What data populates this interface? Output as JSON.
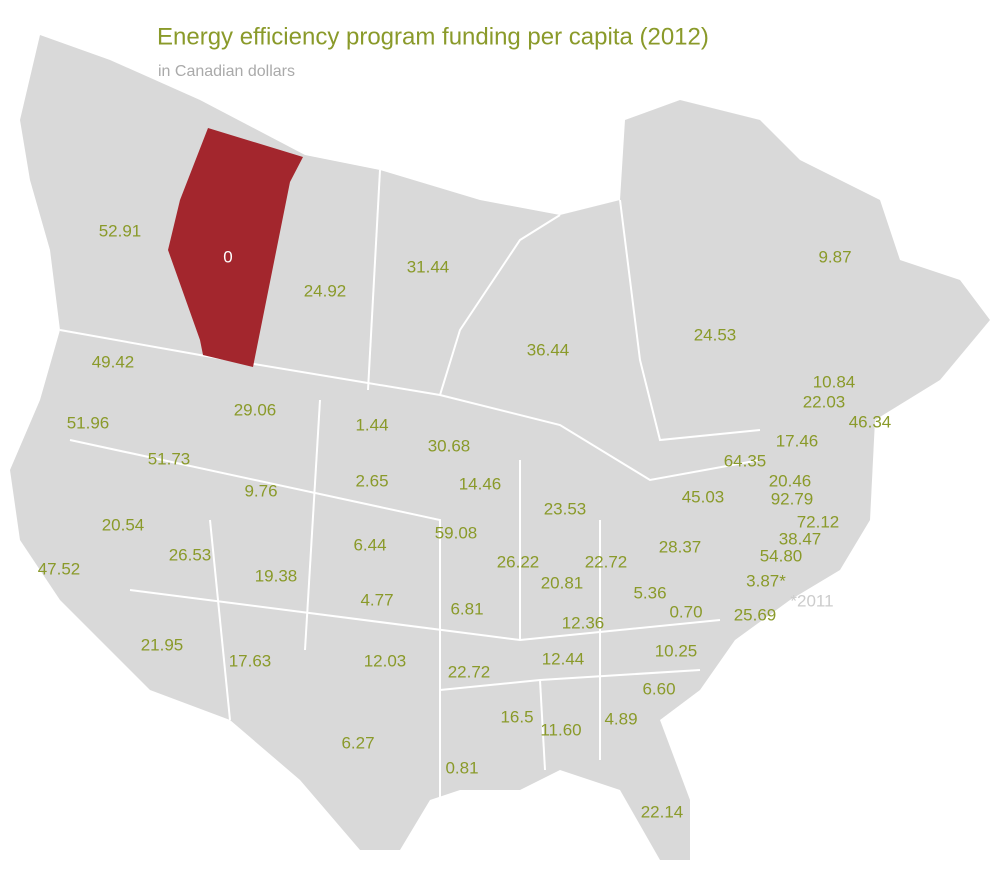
{
  "title": "Energy efficiency program funding per capita (2012)",
  "subtitle": "in Canadian dollars",
  "footnote": "*2011",
  "colors": {
    "land": "#d9d9d9",
    "border": "#ffffff",
    "highlight": "#a3262d",
    "text": "#8a9a2a",
    "highlight_text": "#ffffff",
    "subtitle": "#aaaaaa",
    "footnote": "#cccccc"
  },
  "regions": [
    {
      "value": 52.91
    },
    {
      "value": 0,
      "highlight": true
    },
    {
      "value": 24.92
    },
    {
      "value": 31.44
    },
    {
      "value": 36.44
    },
    {
      "value": 24.53
    },
    {
      "value": 9.87
    },
    {
      "value": 49.42
    },
    {
      "value": 29.06
    },
    {
      "value": 1.44
    },
    {
      "value": 30.68
    },
    {
      "value": 51.96
    },
    {
      "value": 51.73
    },
    {
      "value": 2.65
    },
    {
      "value": 14.46
    },
    {
      "value": 23.53
    },
    {
      "value": 64.35
    },
    {
      "value": 17.46
    },
    {
      "value": 22.03
    },
    {
      "value": 10.84
    },
    {
      "value": 46.34
    },
    {
      "value": 20.46
    },
    {
      "value": 92.79
    },
    {
      "value": 45.03
    },
    {
      "value": 72.12
    },
    {
      "value": 38.47
    },
    {
      "value": 9.76
    },
    {
      "value": 20.54
    },
    {
      "value": 6.44
    },
    {
      "value": 59.08
    },
    {
      "value": 26.22
    },
    {
      "value": 22.72
    },
    {
      "value": 28.37
    },
    {
      "value": 54.8,
      "label": "54.80"
    },
    {
      "value": 3.87,
      "label": "3.87*"
    },
    {
      "value": 26.53
    },
    {
      "value": 19.38
    },
    {
      "value": 47.52
    },
    {
      "value": 4.77
    },
    {
      "value": 20.81
    },
    {
      "value": 6.81
    },
    {
      "value": 5.36
    },
    {
      "value": 0.7,
      "label": "0.70"
    },
    {
      "value": 25.69
    },
    {
      "value": 12.36
    },
    {
      "value": 21.95
    },
    {
      "value": 17.63
    },
    {
      "value": 12.03
    },
    {
      "value": 22.72
    },
    {
      "value": 12.44
    },
    {
      "value": 10.25
    },
    {
      "value": 6.6,
      "label": "6.60"
    },
    {
      "value": 16.5
    },
    {
      "value": 11.6,
      "label": "11.60"
    },
    {
      "value": 4.89
    },
    {
      "value": 6.27
    },
    {
      "value": 0.81
    },
    {
      "value": 22.14
    }
  ]
}
